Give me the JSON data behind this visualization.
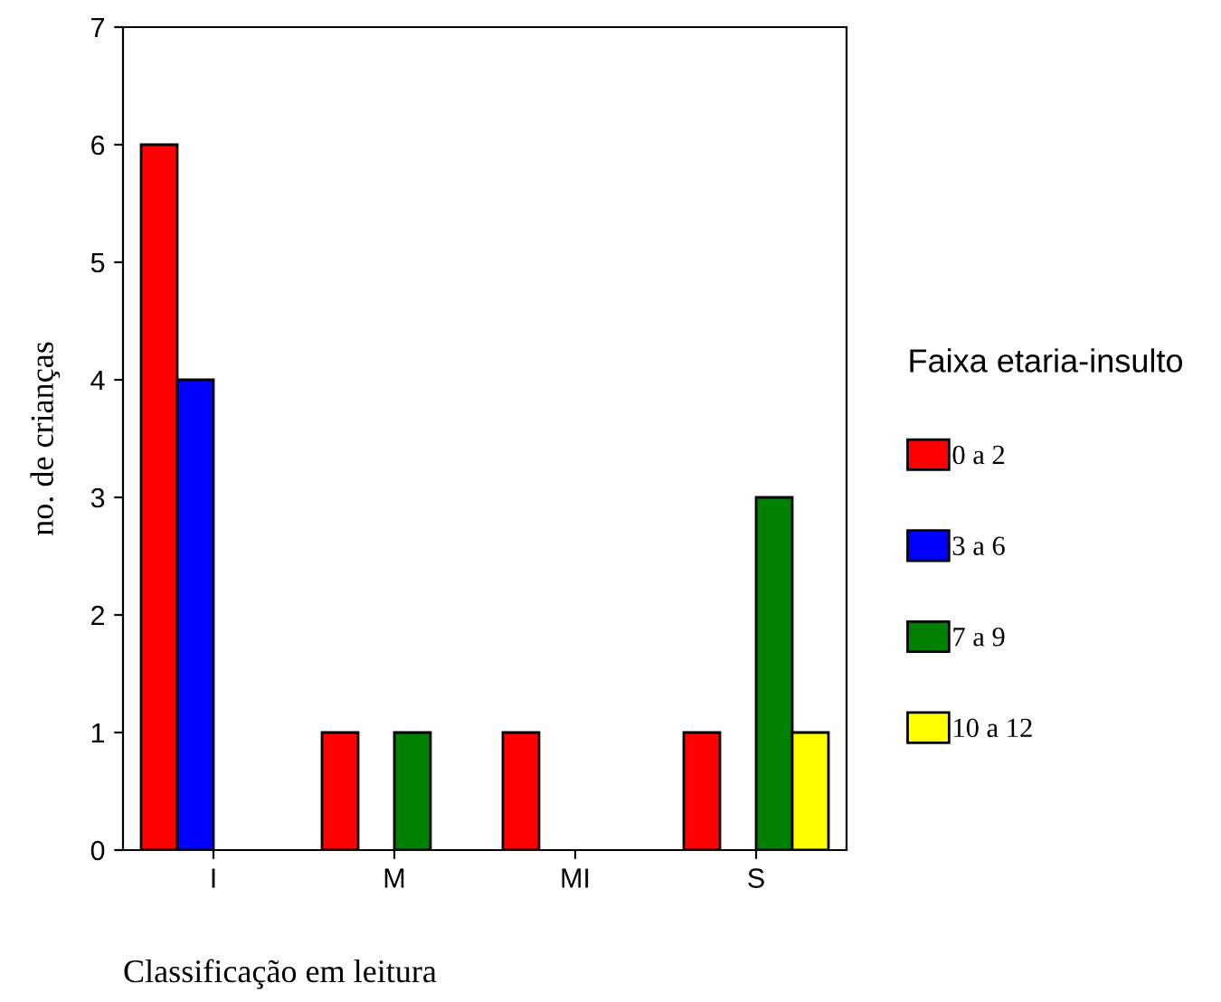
{
  "chart_data": {
    "type": "bar",
    "xlabel": "Classificação em leitura",
    "ylabel": "no. de crianças",
    "legend_title": "Faixa etaria-insulto",
    "categories": [
      "I",
      "M",
      "MI",
      "S"
    ],
    "series": [
      {
        "name": "0 a 2",
        "color": "#ff0000",
        "values": [
          6,
          1,
          1,
          1
        ]
      },
      {
        "name": "3 a 6",
        "color": "#0000ff",
        "values": [
          4,
          null,
          null,
          null
        ]
      },
      {
        "name": "7 a 9",
        "color": "#008000",
        "values": [
          null,
          1,
          null,
          3
        ]
      },
      {
        "name": "10 a 12",
        "color": "#ffff00",
        "values": [
          null,
          null,
          null,
          1
        ]
      }
    ],
    "ylim": [
      0,
      7
    ],
    "yticks": [
      0,
      1,
      2,
      3,
      4,
      5,
      6,
      7
    ],
    "grid": false,
    "legend": "right"
  }
}
